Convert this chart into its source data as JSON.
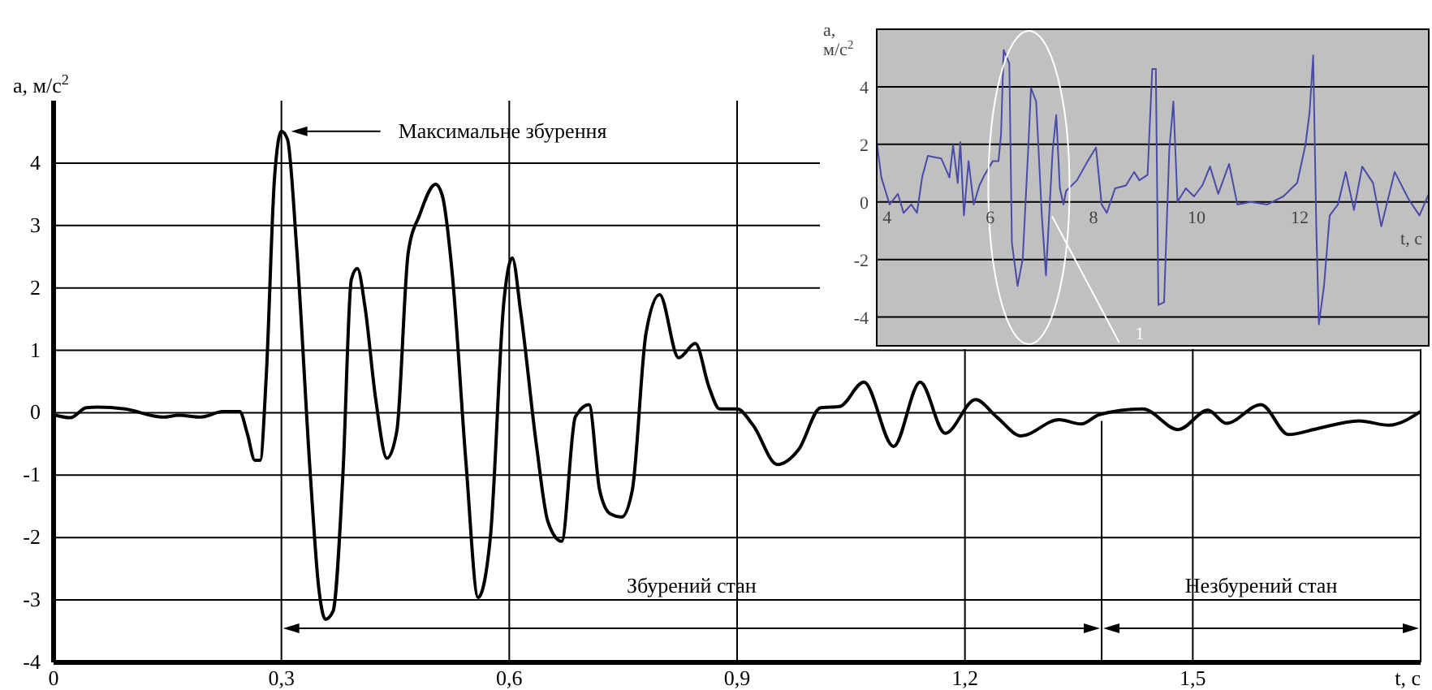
{
  "chart_data": [
    {
      "type": "line",
      "ylabel": "a, м/с$^{2}$",
      "xlabel": "t, c",
      "xlim": [
        0,
        1.8
      ],
      "ylim": [
        -4,
        5
      ],
      "xticks": [
        0,
        {
          "value": 0.3,
          "label": "0,3"
        },
        {
          "value": 0.6,
          "label": "0,6"
        },
        {
          "value": 0.9,
          "label": "0,9"
        },
        {
          "value": 1.2,
          "label": "1,2"
        },
        {
          "value": 1.5,
          "label": "1,5"
        }
      ],
      "yticks": [
        -4,
        -3,
        -2,
        -1,
        0,
        1,
        2,
        3,
        4
      ],
      "grid": true,
      "marker": "none",
      "line_style": "solid",
      "series": [
        {
          "color": "#000000",
          "x": [
            0,
            0.022,
            0.043,
            0.058,
            0.094,
            0.144,
            0.165,
            0.194,
            0.223,
            0.245,
            0.255,
            0.265,
            0.272,
            0.28,
            0.291,
            0.3,
            0.308,
            0.32,
            0.338,
            0.349,
            0.358,
            0.368,
            0.381,
            0.392,
            0.4,
            0.41,
            0.424,
            0.439,
            0.452,
            0.467,
            0.482,
            0.503,
            0.512,
            0.525,
            0.543,
            0.559,
            0.575,
            0.593,
            0.604,
            0.615,
            0.636,
            0.651,
            0.669,
            0.687,
            0.705,
            0.719,
            0.733,
            0.748,
            0.762,
            0.78,
            0.798,
            0.823,
            0.845,
            0.863,
            0.877,
            0.9,
            0.921,
            0.953,
            0.981,
            1.01,
            1.035,
            1.067,
            1.106,
            1.141,
            1.174,
            1.214,
            1.242,
            1.274,
            1.324,
            1.353,
            1.377,
            1.434,
            1.481,
            1.52,
            1.544,
            1.59,
            1.626,
            1.662,
            1.719,
            1.758,
            1.8
          ],
          "values": [
            -0.03,
            -0.08,
            0.08,
            0.09,
            0.06,
            -0.07,
            -0.04,
            -0.07,
            0.02,
            0.02,
            -0.33,
            -0.76,
            -0.76,
            0.58,
            3.78,
            4.51,
            4.38,
            2.65,
            -0.98,
            -2.79,
            -3.31,
            -3.18,
            -0.98,
            2.13,
            2.31,
            1.7,
            0.23,
            -0.73,
            -0.29,
            2.57,
            3.17,
            3.66,
            3.47,
            2.22,
            -0.8,
            -2.96,
            -2.01,
            1.79,
            2.48,
            1.62,
            -0.54,
            -1.75,
            -2.06,
            -0.07,
            0.13,
            -1.24,
            -1.62,
            -1.67,
            -1.24,
            1.27,
            1.89,
            0.88,
            1.11,
            0.41,
            0.06,
            0.06,
            -0.2,
            -0.83,
            -0.59,
            0.08,
            0.1,
            0.49,
            -0.54,
            0.49,
            -0.33,
            0.21,
            -0.07,
            -0.37,
            -0.11,
            -0.18,
            -0.03,
            0.06,
            -0.27,
            0.04,
            -0.17,
            0.13,
            -0.35,
            -0.26,
            -0.13,
            -0.2,
            0.02
          ]
        }
      ],
      "annotations": [
        "Максимальне збурення",
        "Збурений стан",
        "Незбурений стан"
      ],
      "ref_lines": [
        {
          "axis": "x",
          "value": 1.38
        }
      ]
    },
    {
      "type": "line",
      "ylabel": "a, м/с$^{2}$",
      "xlabel": "t, c",
      "xlim": [
        3.8,
        14.5
      ],
      "ylim": [
        -5,
        6
      ],
      "xticks": [
        4,
        6,
        8,
        10,
        12
      ],
      "yticks": [
        -4,
        -2,
        0,
        2,
        4
      ],
      "grid": "y",
      "marker": "none",
      "line_style": "solid",
      "series": [
        {
          "color": "#4a4aa8",
          "x": [
            3.8,
            3.89,
            4.05,
            4.21,
            4.32,
            4.47,
            4.58,
            4.68,
            4.79,
            5.05,
            5.21,
            5.28,
            5.37,
            5.42,
            5.49,
            5.58,
            5.68,
            5.79,
            5.89,
            6.05,
            6.16,
            6.21,
            6.26,
            6.37,
            6.42,
            6.53,
            6.63,
            6.74,
            6.79,
            6.89,
            7.0,
            7.08,
            7.21,
            7.28,
            7.35,
            7.42,
            7.47,
            7.68,
            7.89,
            8.05,
            8.16,
            8.26,
            8.42,
            8.63,
            8.79,
            8.89,
            9.05,
            9.14,
            9.21,
            9.26,
            9.37,
            9.47,
            9.55,
            9.63,
            9.79,
            9.95,
            10.11,
            10.26,
            10.42,
            10.63,
            10.79,
            11.05,
            11.37,
            11.68,
            11.95,
            12.11,
            12.19,
            12.26,
            12.32,
            12.37,
            12.47,
            12.58,
            12.74,
            12.89,
            13.05,
            13.21,
            13.42,
            13.58,
            13.84,
            14.11,
            14.32,
            14.5
          ],
          "values": [
            2.08,
            0.85,
            -0.09,
            0.28,
            -0.38,
            -0.09,
            -0.38,
            0.85,
            1.6,
            1.51,
            0.85,
            1.98,
            0.66,
            2.08,
            -0.47,
            1.42,
            -0.09,
            0.57,
            0.94,
            1.42,
            1.42,
            2.36,
            5.28,
            4.81,
            -1.42,
            -2.92,
            -1.98,
            1.98,
            3.96,
            3.49,
            -0.47,
            -2.55,
            1.79,
            3.02,
            0.47,
            -0.09,
            0.38,
            0.75,
            1.42,
            1.89,
            -0.09,
            -0.38,
            0.47,
            0.57,
            1.04,
            0.75,
            0.94,
            4.62,
            4.62,
            -3.58,
            -3.49,
            1.79,
            3.49,
            0,
            0.47,
            0.19,
            0.57,
            1.23,
            0.28,
            1.32,
            -0.09,
            0,
            -0.09,
            0.19,
            0.66,
            1.98,
            3.11,
            5.09,
            -0.85,
            -4.25,
            -2.92,
            -0.47,
            -0.09,
            1.04,
            -0.28,
            1.23,
            0.66,
            -0.85,
            1.04,
            0.09,
            -0.47,
            0.28
          ]
        }
      ],
      "annotations": [
        "1"
      ]
    }
  ]
}
